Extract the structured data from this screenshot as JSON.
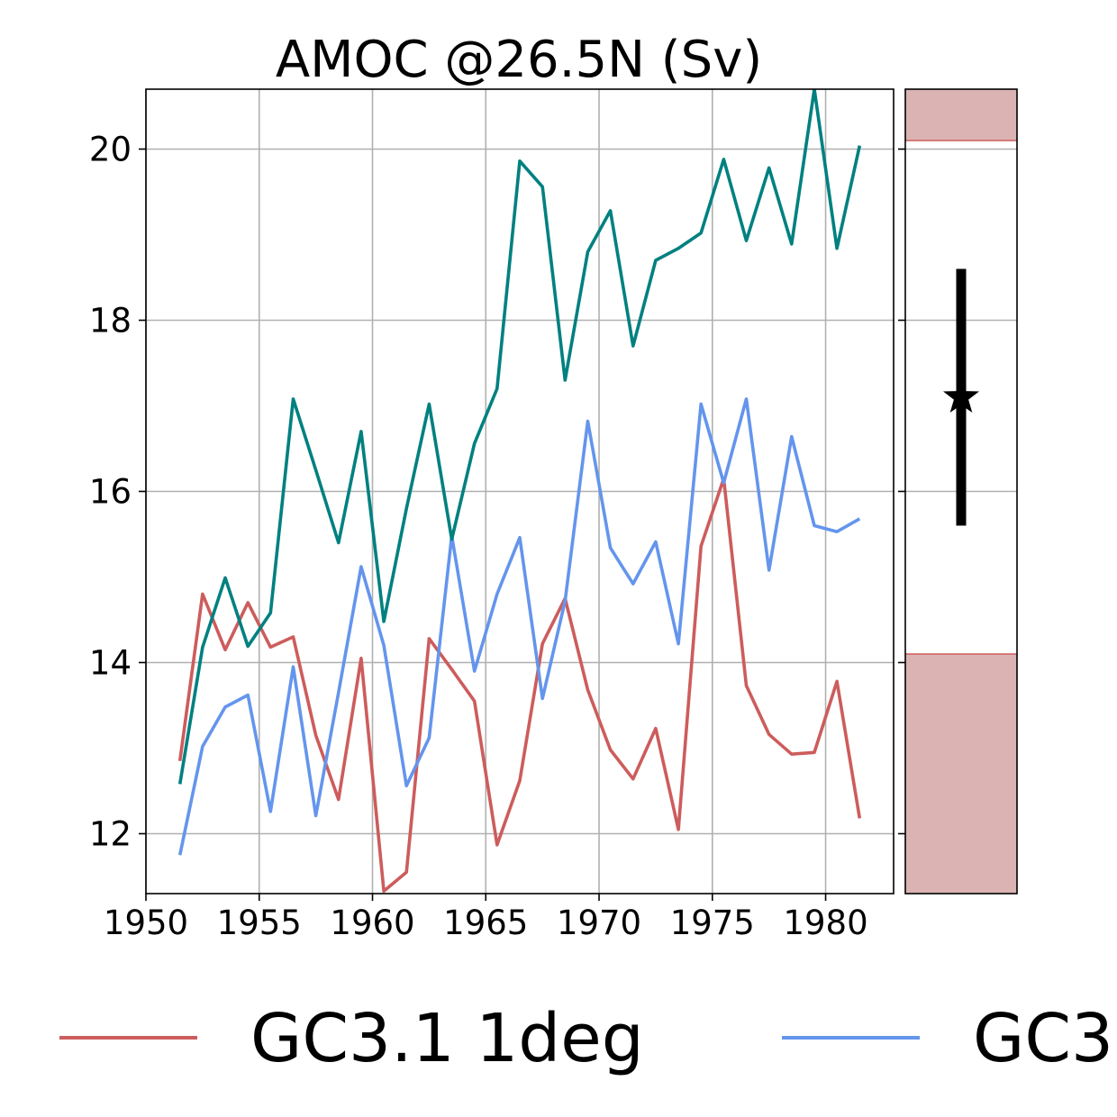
{
  "chart_data": [
    {
      "type": "line",
      "title": "AMOC @26.5N (Sv)",
      "xlabel": "",
      "ylabel": "",
      "xlim": [
        1950,
        1983
      ],
      "ylim": [
        11.3,
        20.7
      ],
      "grid": true,
      "xticks": [
        1950,
        1955,
        1960,
        1965,
        1970,
        1975,
        1980
      ],
      "yticks": [
        12,
        14,
        16,
        18,
        20
      ],
      "x": [
        1951.5,
        1952.5,
        1953.5,
        1954.5,
        1955.5,
        1956.5,
        1957.5,
        1958.5,
        1959.5,
        1960.5,
        1961.5,
        1962.5,
        1963.5,
        1964.5,
        1965.5,
        1966.5,
        1967.5,
        1968.5,
        1969.5,
        1970.5,
        1971.5,
        1972.5,
        1973.5,
        1974.5,
        1975.5,
        1976.5,
        1977.5,
        1978.5,
        1979.5,
        1980.5,
        1981.5
      ],
      "series": [
        {
          "name": "GC3.1 1deg",
          "color": "#cd5c5c",
          "values": [
            12.85,
            14.8,
            14.15,
            14.7,
            14.18,
            14.3,
            13.15,
            12.4,
            14.05,
            11.33,
            11.55,
            14.28,
            13.92,
            13.55,
            11.87,
            12.62,
            14.22,
            14.75,
            13.68,
            12.98,
            12.64,
            13.23,
            12.05,
            15.36,
            16.15,
            13.73,
            13.16,
            12.93,
            12.95,
            13.78,
            12.18
          ]
        },
        {
          "name": "GC3",
          "color": "#6495ed",
          "values": [
            11.75,
            13.02,
            13.48,
            13.62,
            12.26,
            13.95,
            12.21,
            13.65,
            15.12,
            14.2,
            12.56,
            13.12,
            15.48,
            13.9,
            14.8,
            15.46,
            13.58,
            14.72,
            16.82,
            15.34,
            14.92,
            15.41,
            14.22,
            17.02,
            16.1,
            17.08,
            15.08,
            16.64,
            15.6,
            15.53,
            15.68
          ]
        },
        {
          "name": "",
          "color": "#008080",
          "values": [
            12.58,
            14.18,
            14.99,
            14.19,
            14.58,
            17.08,
            16.25,
            15.4,
            16.7,
            14.48,
            15.8,
            17.02,
            15.44,
            16.56,
            17.2,
            19.86,
            19.56,
            17.3,
            18.8,
            19.28,
            17.7,
            18.7,
            18.84,
            19.02,
            19.88,
            18.93,
            19.78,
            18.89,
            20.7,
            18.84,
            20.04
          ]
        }
      ]
    },
    {
      "type": "other",
      "ylim": [
        11.3,
        20.7
      ],
      "shaded_band_color": "#dbb3b3",
      "shaded_edge_color": "#cd5c5c",
      "shaded_below": 14.1,
      "shaded_above": 20.1,
      "marker_value": 17.1,
      "error_low": 15.6,
      "error_high": 18.6
    }
  ],
  "legend": {
    "entries": [
      {
        "label": "GC3.1 1deg",
        "color": "#cd5c5c"
      },
      {
        "label": "GC3",
        "color": "#6495ed"
      }
    ]
  }
}
